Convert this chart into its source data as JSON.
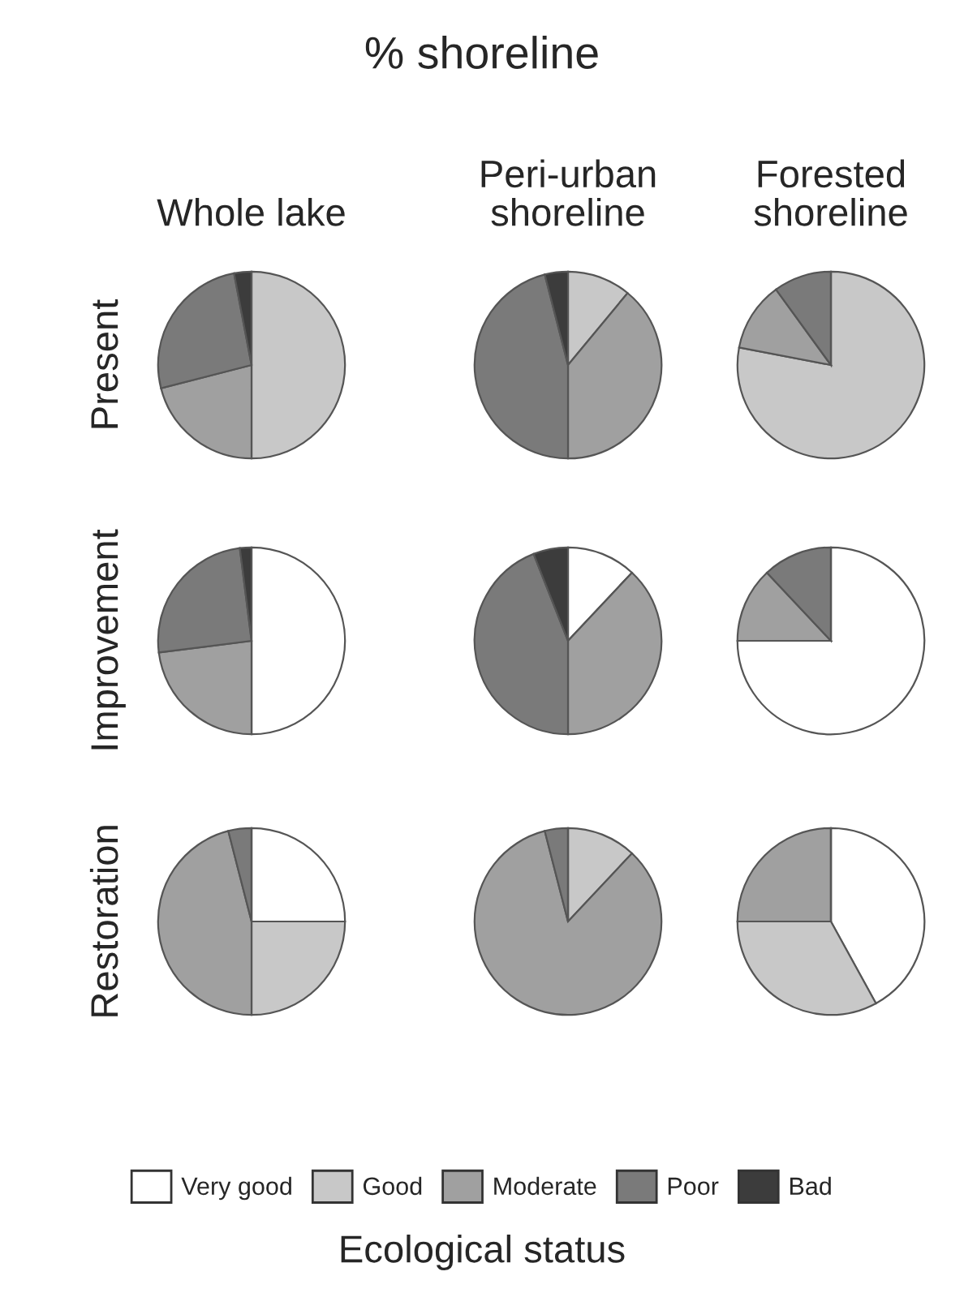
{
  "chart_data": [
    {
      "type": "pie",
      "title": "Whole lake",
      "ylabel": "Present",
      "annotations": [
        "% shoreline"
      ],
      "legend": "bottom",
      "legend_title": "Ecological status",
      "categories": [
        "Very good",
        "Good",
        "Moderate",
        "Poor",
        "Bad"
      ],
      "values": [
        0,
        50,
        21,
        26,
        3
      ],
      "colors": [
        "#ffffff",
        "#c8c8c8",
        "#a0a0a0",
        "#7a7a7a",
        "#3c3c3c"
      ]
    },
    {
      "type": "pie",
      "title": "Peri-urban\nshoreline",
      "categories": [
        null,
        null,
        null,
        null,
        null
      ],
      "values": [
        0,
        11,
        39,
        46,
        4
      ],
      "colors": [
        "#ffffff",
        "#c8c8c8",
        "#a0a0a0",
        "#7a7a7a",
        "#3c3c3c"
      ]
    },
    {
      "type": "pie",
      "title": "Forested\nshoreline",
      "categories": [
        null,
        null,
        null,
        null,
        null
      ],
      "values": [
        0,
        78,
        12,
        10,
        0
      ],
      "colors": [
        "#ffffff",
        "#c8c8c8",
        "#a0a0a0",
        "#7a7a7a",
        "#3c3c3c"
      ]
    },
    {
      "type": "pie",
      "ylabel": "Improvement",
      "categories": [
        null,
        null,
        null,
        null,
        null
      ],
      "values": [
        50,
        0,
        23,
        25,
        2
      ],
      "colors": [
        "#ffffff",
        "#c8c8c8",
        "#a0a0a0",
        "#7a7a7a",
        "#3c3c3c"
      ]
    },
    {
      "type": "pie",
      "categories": [
        null,
        null,
        null,
        null,
        null
      ],
      "values": [
        12,
        0,
        38,
        44,
        6
      ],
      "colors": [
        "#ffffff",
        "#c8c8c8",
        "#a0a0a0",
        "#7a7a7a",
        "#3c3c3c"
      ]
    },
    {
      "type": "pie",
      "categories": [
        null,
        null,
        null,
        null,
        null
      ],
      "values": [
        75,
        0,
        13,
        12,
        0
      ],
      "colors": [
        "#ffffff",
        "#c8c8c8",
        "#a0a0a0",
        "#7a7a7a",
        "#3c3c3c"
      ]
    },
    {
      "type": "pie",
      "ylabel": "Restoration",
      "categories": [
        null,
        null,
        null,
        null,
        null
      ],
      "values": [
        25,
        25,
        46,
        4,
        0
      ],
      "colors": [
        "#ffffff",
        "#c8c8c8",
        "#a0a0a0",
        "#7a7a7a",
        "#3c3c3c"
      ]
    },
    {
      "type": "pie",
      "categories": [
        null,
        null,
        null,
        null,
        null
      ],
      "values": [
        0,
        12,
        84,
        4,
        0
      ],
      "colors": [
        "#ffffff",
        "#c8c8c8",
        "#a0a0a0",
        "#7a7a7a",
        "#3c3c3c"
      ]
    },
    {
      "type": "pie",
      "categories": [
        null,
        null,
        null,
        null,
        null
      ],
      "values": [
        42,
        33,
        25,
        0,
        0
      ],
      "colors": [
        "#ffffff",
        "#c8c8c8",
        "#a0a0a0",
        "#7a7a7a",
        "#3c3c3c"
      ]
    }
  ]
}
